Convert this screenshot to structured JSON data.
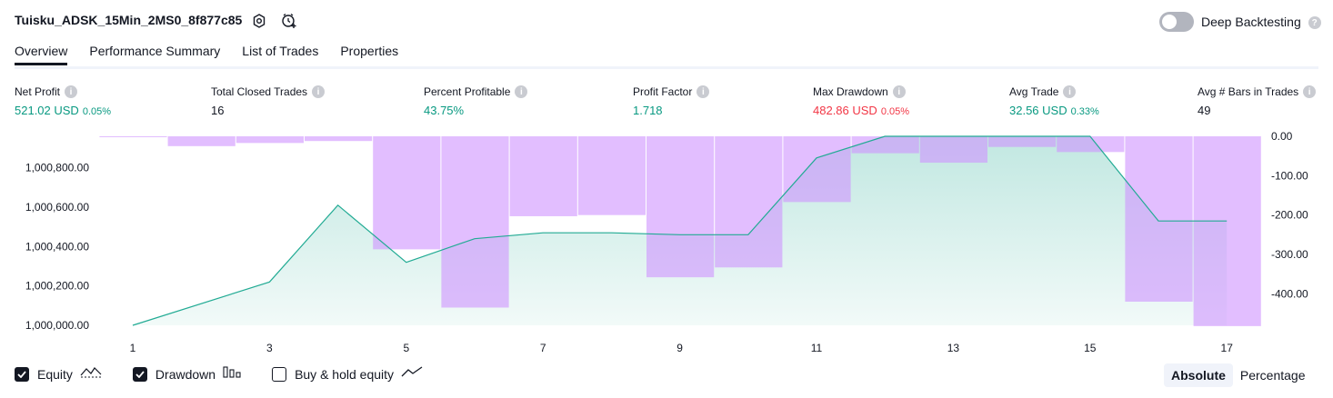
{
  "header": {
    "title": "Tuisku_ADSK_15Min_2MS0_8f877c85",
    "deep_backtesting_label": "Deep Backtesting",
    "deep_backtesting_on": false
  },
  "tabs": [
    {
      "label": "Overview",
      "active": true
    },
    {
      "label": "Performance Summary",
      "active": false
    },
    {
      "label": "List of Trades",
      "active": false
    },
    {
      "label": "Properties",
      "active": false
    }
  ],
  "metrics": [
    {
      "label": "Net Profit",
      "value": "521.02 USD",
      "pct": "0.05%",
      "color": "#089981"
    },
    {
      "label": "Total Closed Trades",
      "value": "16",
      "pct": "",
      "color": "#131722"
    },
    {
      "label": "Percent Profitable",
      "value": "43.75%",
      "pct": "",
      "color": "#089981"
    },
    {
      "label": "Profit Factor",
      "value": "1.718",
      "pct": "",
      "color": "#089981"
    },
    {
      "label": "Max Drawdown",
      "value": "482.86 USD",
      "pct": "0.05%",
      "color": "#f23645"
    },
    {
      "label": "Avg Trade",
      "value": "32.56 USD",
      "pct": "0.33%",
      "color": "#089981"
    },
    {
      "label": "Avg # Bars in Trades",
      "value": "49",
      "pct": "",
      "color": "#131722"
    }
  ],
  "chart_data": {
    "type": "line",
    "x_ticks": [
      "1",
      "3",
      "5",
      "7",
      "9",
      "11",
      "13",
      "15",
      "17"
    ],
    "left_axis": {
      "ticks": [
        "1,000,000.00",
        "1,000,200.00",
        "1,000,400.00",
        "1,000,600.00",
        "1,000,800.00"
      ],
      "range": [
        1000000,
        1000960
      ]
    },
    "right_axis": {
      "ticks": [
        "0.00",
        "-100.00",
        "-200.00",
        "-300.00",
        "-400.00"
      ],
      "range": [
        -480,
        0
      ]
    },
    "series": [
      {
        "name": "Equity",
        "kind": "area-line",
        "color": "#22ab94",
        "x": [
          1,
          3,
          4,
          5,
          6,
          7,
          8,
          9,
          10,
          11,
          12,
          13,
          14,
          15,
          16,
          17
        ],
        "values": [
          1000000,
          1000220,
          1000610,
          1000320,
          1000440,
          1000470,
          1000470,
          1000460,
          1000460,
          1000850,
          1000960,
          1000960,
          1000960,
          1000960,
          1000530,
          1000530
        ]
      },
      {
        "name": "Drawdown",
        "kind": "bar",
        "color": "#ce93ff",
        "x": [
          1,
          2,
          3,
          4,
          5,
          6,
          7,
          8,
          9,
          10,
          11,
          12,
          13,
          14,
          15,
          16,
          17
        ],
        "values": [
          -2,
          -25,
          -17,
          -12,
          -287,
          -435,
          -203,
          -200,
          -358,
          -333,
          -167,
          -43,
          -67,
          -27,
          -40,
          -420,
          -482
        ]
      }
    ],
    "grid": false
  },
  "legend": {
    "equity_label": "Equity",
    "equity_checked": true,
    "drawdown_label": "Drawdown",
    "drawdown_checked": true,
    "buyhold_label": "Buy & hold equity",
    "buyhold_checked": false
  },
  "mode": {
    "absolute_label": "Absolute",
    "percentage_label": "Percentage",
    "selected": "Absolute"
  }
}
